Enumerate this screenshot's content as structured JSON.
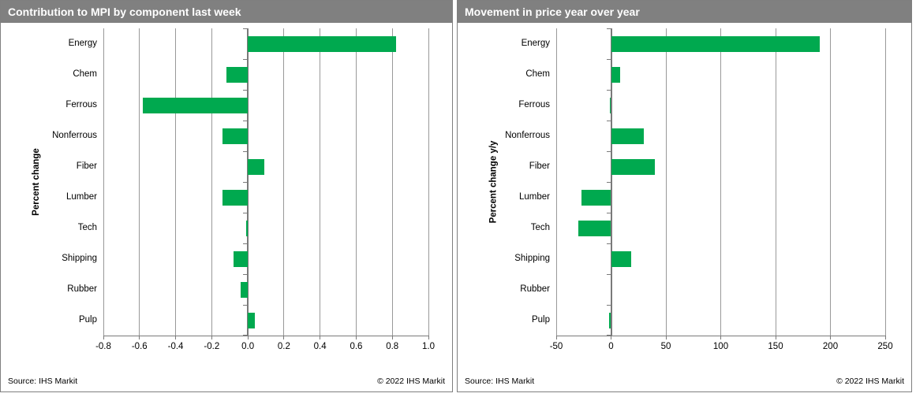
{
  "colors": {
    "title_bar_bg": "#808080",
    "title_text": "#ffffff",
    "bar_green": "#00a94f",
    "gridline": "#999999",
    "axis": "#7a7a7a",
    "panel_border": "#7f7f7f"
  },
  "chart_data": [
    {
      "type": "bar",
      "orientation": "horizontal",
      "title": "Contribution to MPI by component last week",
      "ylabel": "Percent change",
      "xlabel": "",
      "categories": [
        "Energy",
        "Chem",
        "Ferrous",
        "Nonferrous",
        "Fiber",
        "Lumber",
        "Tech",
        "Shipping",
        "Rubber",
        "Pulp"
      ],
      "values": [
        0.82,
        -0.12,
        -0.58,
        -0.14,
        0.09,
        -0.14,
        -0.01,
        -0.08,
        -0.04,
        0.04
      ],
      "xlim": [
        -0.8,
        1.0
      ],
      "xticks": [
        -0.8,
        -0.6,
        -0.4,
        -0.2,
        0.0,
        0.2,
        0.4,
        0.6,
        0.8,
        1.0
      ],
      "xtick_labels": [
        "-0.8",
        "-0.6",
        "-0.4",
        "-0.2",
        "0.0",
        "0.2",
        "0.4",
        "0.6",
        "0.8",
        "1.0"
      ],
      "bar_color": "#00a94f",
      "grid": true,
      "legend": false,
      "source": "Source: IHS Markit",
      "copyright": "© 2022 IHS Markit"
    },
    {
      "type": "bar",
      "orientation": "horizontal",
      "title": "Movement in price year over year",
      "ylabel": "Percent change y/y",
      "xlabel": "",
      "categories": [
        "Energy",
        "Chem",
        "Ferrous",
        "Nonferrous",
        "Fiber",
        "Lumber",
        "Tech",
        "Shipping",
        "Rubber",
        "Pulp"
      ],
      "values": [
        190,
        8,
        -1,
        30,
        40,
        -27,
        -30,
        18,
        0,
        -2
      ],
      "xlim": [
        -50,
        250
      ],
      "xticks": [
        -50,
        0,
        50,
        100,
        150,
        200,
        250
      ],
      "xtick_labels": [
        "-50",
        "0",
        "50",
        "100",
        "150",
        "200",
        "250"
      ],
      "bar_color": "#00a94f",
      "grid": true,
      "legend": false,
      "source": "Source: IHS Markit",
      "copyright": "© 2022 IHS Markit"
    }
  ]
}
